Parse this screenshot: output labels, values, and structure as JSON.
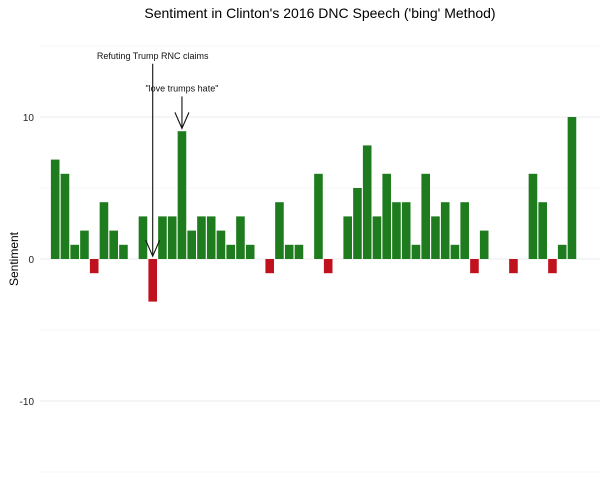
{
  "chart_data": {
    "type": "bar",
    "title": "Sentiment in Clinton's 2016 DNC Speech ('bing' Method)",
    "xlabel": "",
    "ylabel": "Sentiment",
    "ylim": [
      -15,
      15
    ],
    "yticks": [
      -10,
      0,
      10
    ],
    "grid": true,
    "colors": {
      "positive": "#1e7c1e",
      "negative": "#c0111f"
    },
    "values": [
      7,
      6,
      1,
      2,
      -1,
      4,
      2,
      1,
      0,
      3,
      -3,
      3,
      3,
      9,
      2,
      3,
      3,
      2,
      1,
      3,
      1,
      0,
      -1,
      4,
      1,
      1,
      0,
      6,
      -1,
      0,
      3,
      5,
      8,
      3,
      6,
      4,
      4,
      1,
      6,
      3,
      4,
      1,
      4,
      -1,
      2,
      0,
      0,
      -1,
      0,
      6,
      4,
      -1,
      1,
      10
    ],
    "annotations": [
      {
        "text": "Refuting Trump RNC claims",
        "bar_index": 10,
        "text_y": 14.1,
        "arrow_tip_y": 0.2
      },
      {
        "text": "\"love trumps hate\"",
        "bar_index": 13,
        "text_y": 11.8,
        "arrow_tip_y": 9.2
      }
    ]
  }
}
